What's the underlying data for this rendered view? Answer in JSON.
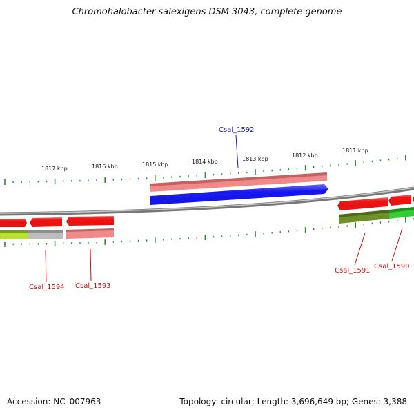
{
  "title": "Chromohalobacter salexigens DSM 3043, complete genome",
  "footer": {
    "accession": "Accession: NC_007963",
    "topology": "Topology: circular; Length: 3,696,649 bp; Genes: 3,388"
  },
  "ruler_ticks": [
    "1817 kbp",
    "1816 kbp",
    "1815 kbp",
    "1814 kbp",
    "1813 kbp",
    "1812 kbp",
    "1811 kbp"
  ],
  "gene_labels": {
    "csal_1592": "Csal_1592",
    "csal_1591": "Csal_1591",
    "csal_1590": "Csal_1590",
    "csal_1593": "Csal_1593",
    "csal_1594": "Csal_1594"
  },
  "colors": {
    "backbone": "#8a8a8a",
    "tick": "#2e8b2e",
    "gene_red": "#ee1111",
    "gene_pink": "#f08a8a",
    "gene_blue": "#1515ee",
    "gene_olive": "#6f8f2a",
    "gene_green": "#33cc33",
    "gene_lime": "#b8e030",
    "gene_gray": "#bdbdbd",
    "label_blue": "#1a1ab0",
    "label_red": "#cc1111"
  }
}
